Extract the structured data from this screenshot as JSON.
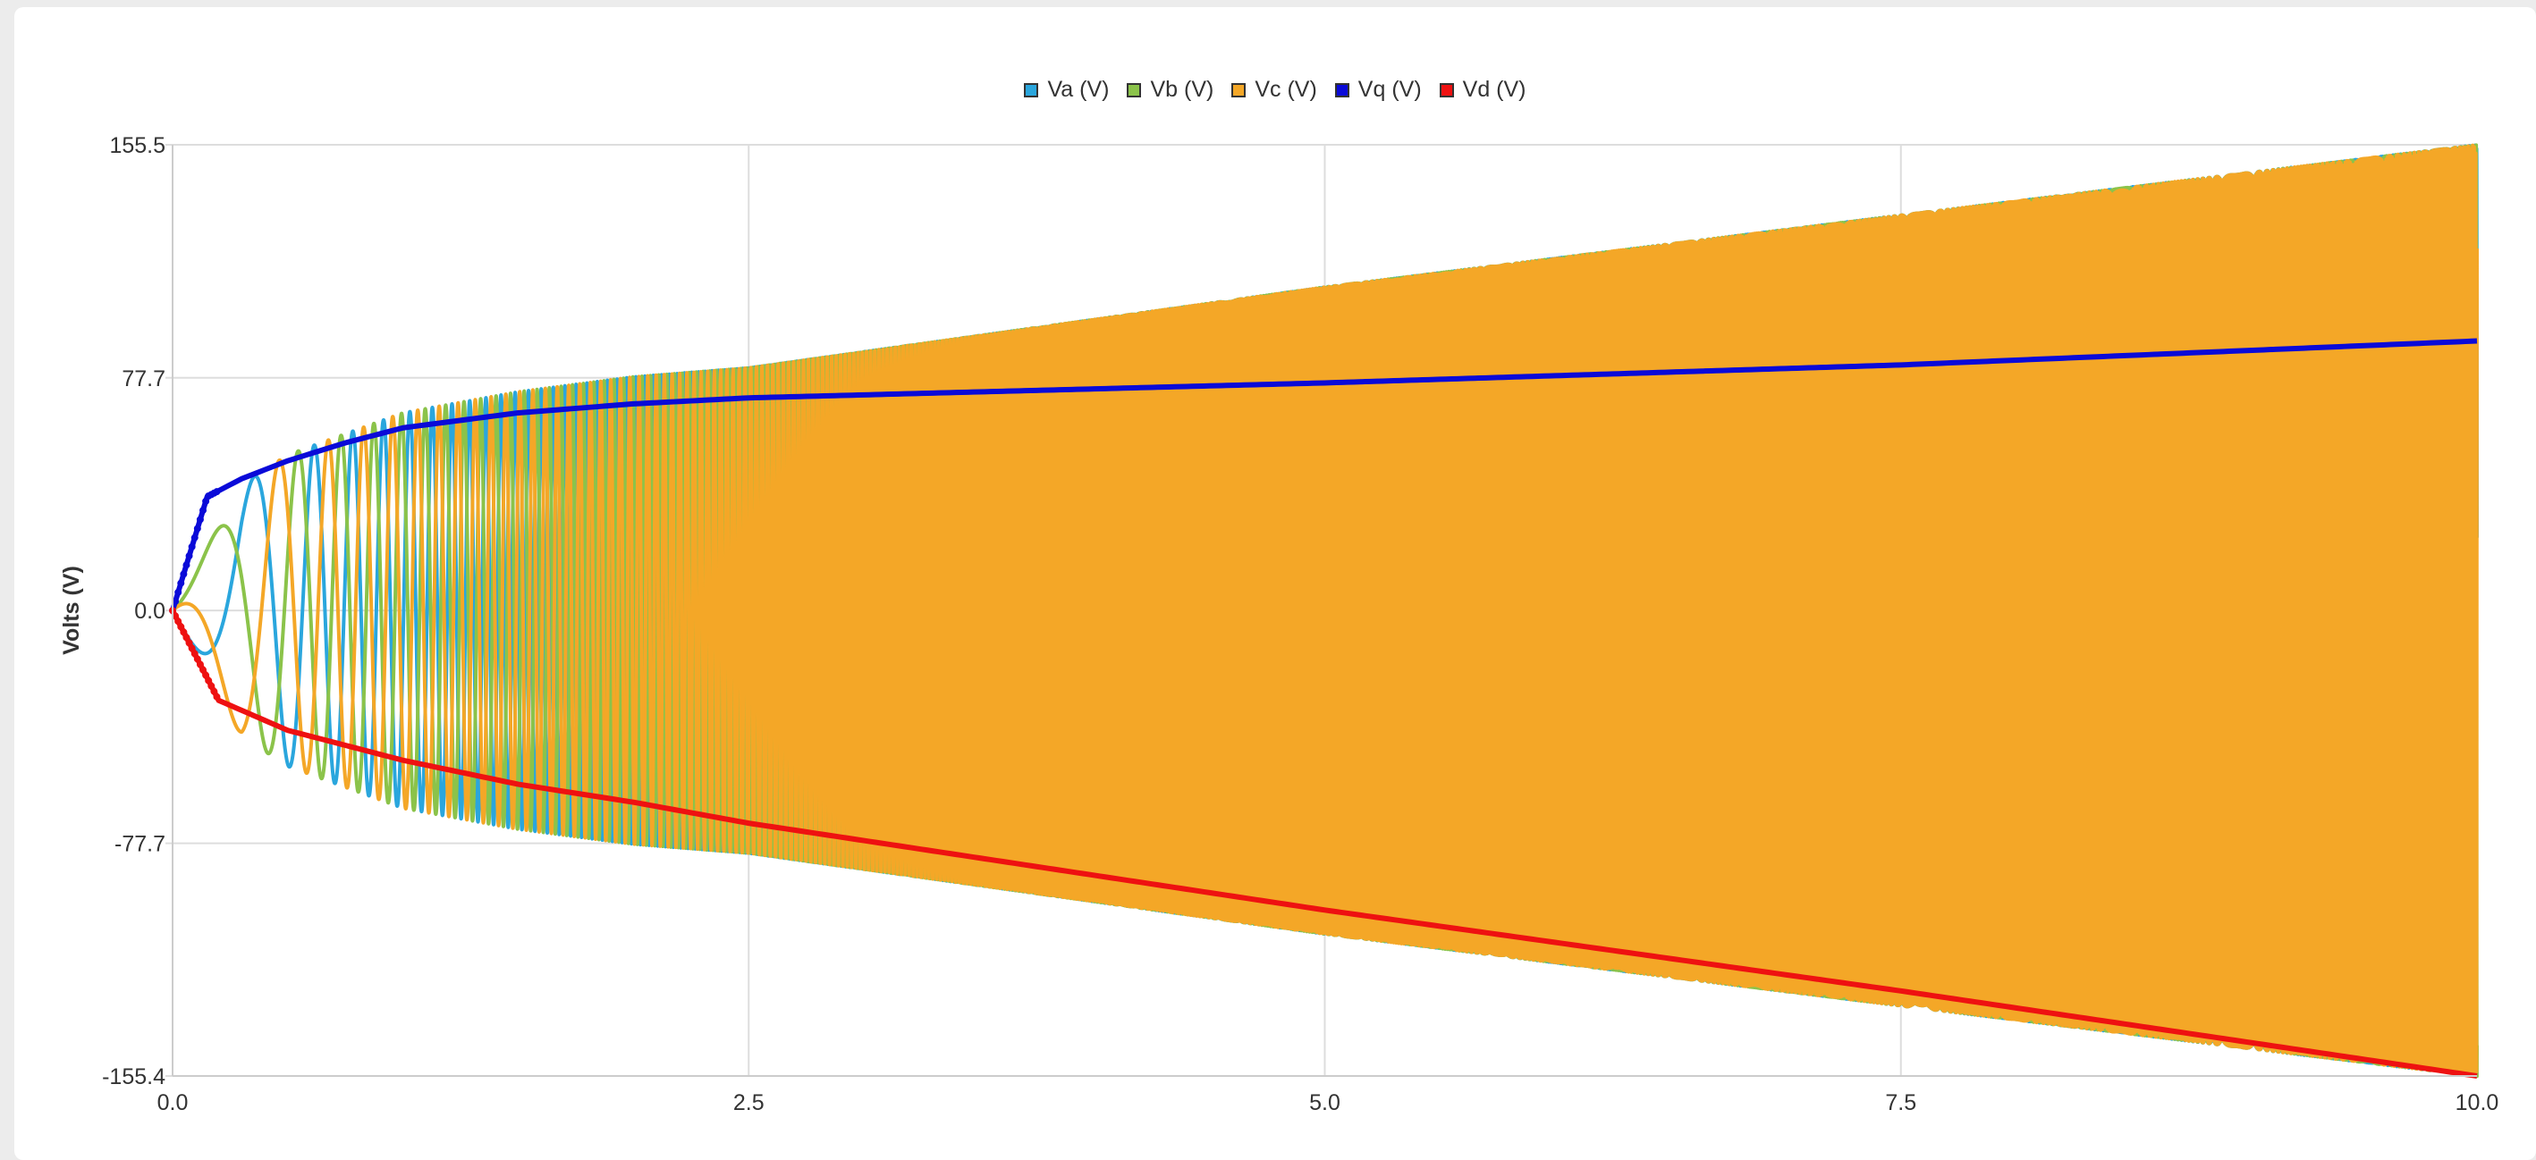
{
  "chart_data": {
    "type": "line",
    "title": "",
    "xlabel": "",
    "ylabel": "Volts (V)",
    "xlim": [
      0,
      10
    ],
    "ylim": [
      -155.4,
      155.5
    ],
    "x_ticks": [
      "0.0",
      "2.5",
      "5.0",
      "7.5",
      "10.0"
    ],
    "x_tick_values": [
      0,
      2.5,
      5,
      7.5,
      10
    ],
    "y_ticks": [
      "155.5",
      "77.7",
      "0.0",
      "-77.7",
      "-155.4"
    ],
    "y_tick_values": [
      155.5,
      77.7,
      0,
      -77.7,
      -155.4
    ],
    "grid": true,
    "legend_position": "top-center",
    "series": [
      {
        "name": "Va (V)",
        "color": "#2aa6dd",
        "kind": "oscillating",
        "phase_deg": -90
      },
      {
        "name": "Vb (V)",
        "color": "#8bc34a",
        "kind": "oscillating",
        "phase_deg": 30
      },
      {
        "name": "Vc (V)",
        "color": "#f4a727",
        "kind": "oscillating",
        "phase_deg": 150
      },
      {
        "name": "Vq (V)",
        "color": "#0a0ad8",
        "kind": "envelope",
        "x": [
          0,
          0.15,
          0.3,
          0.5,
          0.75,
          1.0,
          1.5,
          2.0,
          2.5,
          5.0,
          7.5,
          10.0
        ],
        "y": [
          0,
          38,
          44,
          50,
          56,
          61,
          66,
          69,
          71,
          76,
          82,
          90
        ]
      },
      {
        "name": "Vd (V)",
        "color": "#ee1111",
        "kind": "envelope",
        "x": [
          0,
          0.2,
          0.5,
          1.0,
          1.5,
          2.0,
          2.5,
          5.0,
          7.5,
          10.0
        ],
        "y": [
          0,
          -30,
          -40,
          -50,
          -58,
          -64,
          -71,
          -100,
          -127,
          -155.4
        ]
      }
    ],
    "amplitude_envelope": {
      "x": [
        0,
        0.3,
        0.5,
        1.0,
        1.5,
        2.0,
        2.5,
        5.0,
        7.5,
        10.0
      ],
      "y": [
        0,
        42,
        52,
        66,
        73,
        78,
        81,
        108,
        132,
        155.5
      ]
    },
    "frequency_hz": {
      "x": [
        0,
        0.3,
        1.0,
        2.0,
        3.0,
        10.0
      ],
      "y": [
        0.5,
        2,
        9,
        25,
        55,
        160
      ]
    }
  }
}
